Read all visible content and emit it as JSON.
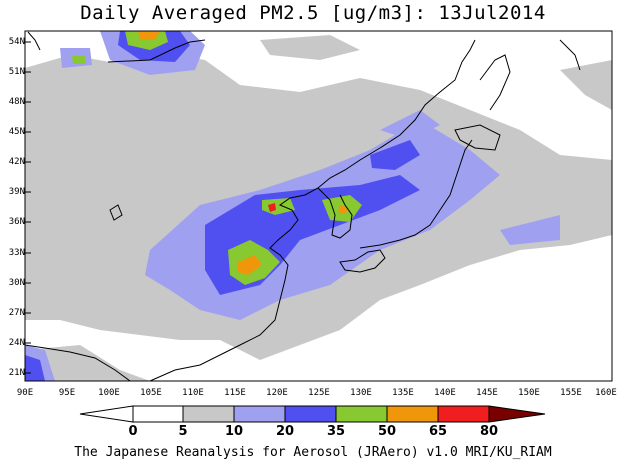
{
  "title": "Daily Averaged PM2.5 [ug/m3]: 13Jul2014",
  "credit": "The Japanese Reanalysis for Aerosol (JRAero) v1.0 MRI/KU_RIAM",
  "lat_labels": [
    "54N",
    "51N",
    "48N",
    "45N",
    "42N",
    "39N",
    "36N",
    "33N",
    "30N",
    "27N",
    "24N",
    "21N"
  ],
  "lon_labels": [
    "90E",
    "95E",
    "100E",
    "105E",
    "110E",
    "115E",
    "120E",
    "125E",
    "130E",
    "135E",
    "140E",
    "145E",
    "150E",
    "155E",
    "160E"
  ],
  "colorbar": {
    "labels": [
      "0",
      "5",
      "10",
      "20",
      "35",
      "50",
      "65",
      "80"
    ],
    "colors": [
      "#ffffff",
      "#c8c8c8",
      "#a0a0f0",
      "#5050f0",
      "#88c830",
      "#f0960a",
      "#f01e1e",
      "#780000"
    ]
  },
  "map": {
    "region": "East Asia",
    "lon_range": [
      90,
      160
    ],
    "lat_range": [
      20,
      55
    ],
    "coastline_color": "#000000"
  }
}
